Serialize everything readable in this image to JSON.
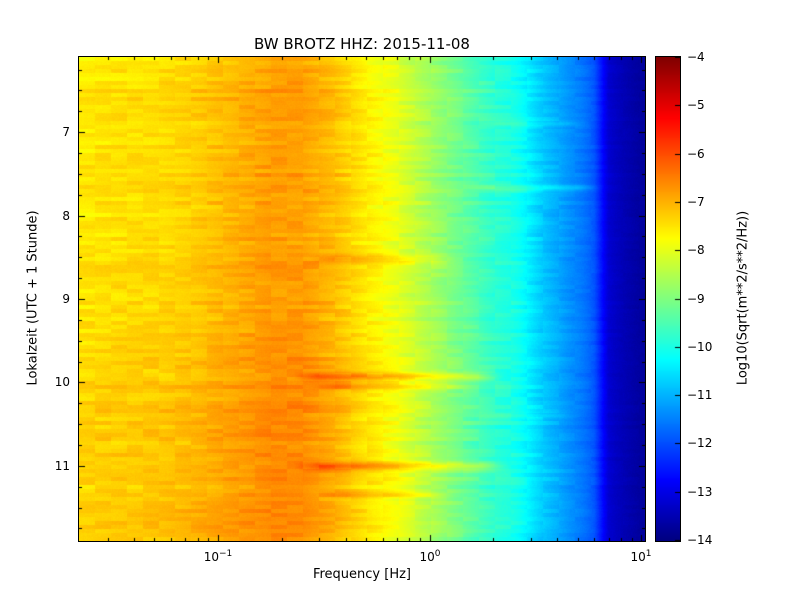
{
  "chart_data": {
    "type": "heatmap",
    "title": "BW BROTZ HHZ: 2015-11-08",
    "xlabel": "Frequency [Hz]",
    "ylabel": "Lokalzeit (UTC + 1 Stunde)",
    "x_scale": "log",
    "x_range_hz": [
      0.022,
      10.4
    ],
    "y_range_hours": [
      6.1,
      11.9
    ],
    "x_ticks": [
      {
        "value": 0.1,
        "label": "10^-1"
      },
      {
        "value": 1,
        "label": "10^0"
      },
      {
        "value": 10,
        "label": "10^1"
      }
    ],
    "y_ticks": [
      7,
      8,
      9,
      10,
      11
    ],
    "grid": false,
    "colormap": "jet",
    "colorbar": {
      "label": "Log10(Sqrt(m**2/s**2/Hz))",
      "min": -14,
      "max": -4,
      "ticks": [
        -4,
        -5,
        -6,
        -7,
        -8,
        -9,
        -10,
        -11,
        -12,
        -13,
        -14
      ]
    },
    "frequencies_hz": [
      0.022,
      0.035,
      0.055,
      0.08,
      0.12,
      0.18,
      0.25,
      0.35,
      0.5,
      0.7,
      1.0,
      1.5,
      2.5,
      4.0,
      6.0,
      7.0,
      10.0
    ],
    "times_hours": [
      6.1,
      6.6,
      7.1,
      7.6,
      8.1,
      8.6,
      9.1,
      9.6,
      10.1,
      10.6,
      11.1,
      11.9
    ],
    "values_log10": [
      [
        -7.6,
        -7.5,
        -7.45,
        -7.3,
        -7.05,
        -6.85,
        -6.85,
        -7.15,
        -7.6,
        -8.0,
        -8.6,
        -9.3,
        -10.2,
        -11.1,
        -12.2,
        -13.3,
        -13.7
      ],
      [
        -7.5,
        -7.4,
        -7.35,
        -7.2,
        -6.95,
        -6.75,
        -6.75,
        -7.05,
        -7.6,
        -8.0,
        -8.6,
        -9.3,
        -10.2,
        -11.1,
        -12.2,
        -13.3,
        -13.7
      ],
      [
        -7.6,
        -7.5,
        -7.45,
        -7.3,
        -7.05,
        -6.85,
        -6.85,
        -7.15,
        -7.6,
        -8.0,
        -8.6,
        -9.3,
        -10.2,
        -11.1,
        -12.2,
        -13.3,
        -13.7
      ],
      [
        -7.5,
        -7.4,
        -7.35,
        -7.2,
        -6.95,
        -6.75,
        -6.75,
        -7.05,
        -7.55,
        -7.95,
        -8.6,
        -9.3,
        -10.15,
        -11.05,
        -12.2,
        -13.3,
        -13.7
      ],
      [
        -7.6,
        -7.5,
        -7.45,
        -7.3,
        -7.05,
        -6.85,
        -6.85,
        -7.15,
        -7.6,
        -8.0,
        -8.6,
        -9.3,
        -10.2,
        -11.1,
        -12.2,
        -13.3,
        -13.7
      ],
      [
        -7.45,
        -7.35,
        -7.3,
        -7.15,
        -6.9,
        -6.7,
        -6.7,
        -7.0,
        -7.5,
        -7.9,
        -8.5,
        -9.25,
        -10.2,
        -11.1,
        -12.2,
        -13.3,
        -13.7
      ],
      [
        -7.55,
        -7.45,
        -7.4,
        -7.25,
        -7.0,
        -6.8,
        -6.8,
        -7.1,
        -7.6,
        -8.0,
        -8.6,
        -9.3,
        -10.2,
        -11.1,
        -12.2,
        -13.3,
        -13.7
      ],
      [
        -7.45,
        -7.35,
        -7.3,
        -7.15,
        -6.9,
        -6.7,
        -6.7,
        -7.0,
        -7.5,
        -7.9,
        -8.5,
        -9.2,
        -10.15,
        -11.05,
        -12.2,
        -13.3,
        -13.7
      ],
      [
        -7.35,
        -7.25,
        -7.2,
        -7.05,
        -6.8,
        -6.6,
        -6.6,
        -6.9,
        -7.4,
        -7.8,
        -8.45,
        -9.2,
        -10.15,
        -11.05,
        -12.2,
        -13.3,
        -13.7
      ],
      [
        -7.3,
        -7.2,
        -7.15,
        -7.0,
        -6.75,
        -6.55,
        -6.6,
        -6.95,
        -7.5,
        -7.9,
        -8.55,
        -9.3,
        -10.2,
        -11.1,
        -12.2,
        -13.3,
        -13.7
      ],
      [
        -7.4,
        -7.3,
        -7.25,
        -7.1,
        -6.85,
        -6.65,
        -6.65,
        -6.95,
        -7.45,
        -7.85,
        -8.5,
        -9.25,
        -10.15,
        -11.05,
        -12.2,
        -13.3,
        -13.7
      ],
      [
        -7.3,
        -7.2,
        -7.1,
        -6.9,
        -6.7,
        -6.55,
        -6.6,
        -6.95,
        -7.5,
        -7.9,
        -8.5,
        -9.25,
        -10.2,
        -11.1,
        -12.2,
        -13.3,
        -13.7
      ]
    ],
    "transient_events": [
      {
        "time": 8.52,
        "f_lo": 0.35,
        "f_hi": 1.0,
        "boost": 0.5,
        "duration": 0.05
      },
      {
        "time": 9.93,
        "f_lo": 0.3,
        "f_hi": 1.7,
        "boost": 0.9,
        "duration": 0.05
      },
      {
        "time": 10.05,
        "f_lo": 0.35,
        "f_hi": 1.2,
        "boost": 0.5,
        "duration": 0.04
      },
      {
        "time": 11.0,
        "f_lo": 0.3,
        "f_hi": 1.8,
        "boost": 0.85,
        "duration": 0.05
      },
      {
        "time": 11.35,
        "f_lo": 0.4,
        "f_hi": 1.0,
        "boost": 0.45,
        "duration": 0.04
      },
      {
        "time": 7.67,
        "f_lo": 2.0,
        "f_hi": 5.0,
        "boost": 0.45,
        "duration": 0.04
      },
      {
        "time": 6.9,
        "f_lo": 2.2,
        "f_hi": 4.5,
        "boost": 0.35,
        "duration": 0.035
      },
      {
        "time": 10.4,
        "f_lo": 2.0,
        "f_hi": 4.0,
        "boost": 0.3,
        "duration": 0.035
      }
    ],
    "bright_columns": [
      {
        "freq": 2.6,
        "boost": 0.18,
        "sigma_log": 0.01
      },
      {
        "freq": 5.6,
        "boost": 0.3,
        "sigma_log": 0.012
      }
    ]
  }
}
